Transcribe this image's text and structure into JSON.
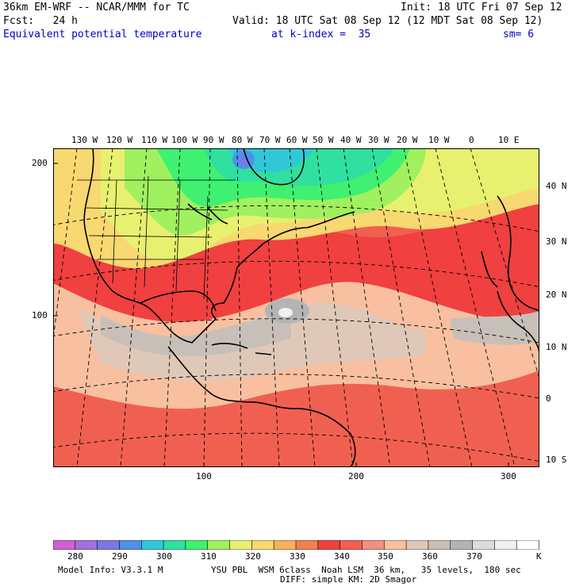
{
  "header": {
    "model_line": "36km EM-WRF -- NCAR/MMM for TC",
    "init_line": "Init: 18 UTC Fri 07 Sep 12",
    "fcst_line": "Fcst:   24 h",
    "valid_line": "Valid: 18 UTC Sat 08 Sep 12 (12 MDT Sat 08 Sep 12)",
    "field": "Equivalent potential temperature",
    "level": "at k-index =  35",
    "smoothing": "sm= 6"
  },
  "map": {
    "top_lon_labels": [
      "130 W",
      "120 W",
      "110 W",
      "100 W",
      "90 W",
      "80 W",
      "70 W",
      "60 W",
      "50 W",
      "40 W",
      "30 W",
      "20 W",
      "10 W",
      "0",
      "10 E"
    ],
    "right_lat_labels": [
      "40 N",
      "30 N",
      "20 N",
      "10 N",
      "0",
      "10 S"
    ],
    "left_grid_labels": [
      "200",
      "100"
    ],
    "bottom_grid_labels": [
      "100",
      "200",
      "300"
    ]
  },
  "colorbar": {
    "labels": [
      "280",
      "290",
      "300",
      "310",
      "320",
      "330",
      "340",
      "350",
      "360",
      "370"
    ],
    "unit": "K",
    "colors": [
      "#d060d0",
      "#a070e0",
      "#7878e8",
      "#5090e8",
      "#30c8d8",
      "#30e0a0",
      "#40f070",
      "#a0f060",
      "#e8f070",
      "#f8d870",
      "#f8b060",
      "#f08050",
      "#f04040",
      "#f06050",
      "#f09080",
      "#f8c0a0",
      "#e0c8b8",
      "#c8c0b8",
      "#b4b4b4",
      "#dcdcdc",
      "#f0f0f0",
      "#ffffff"
    ]
  },
  "footer": {
    "model_info": "Model Info: V3.3.1 M",
    "physics": "YSU PBL  WSM 6class  Noah LSM  36 km,   35 levels,  180 sec",
    "diffusion": "DIFF: simple KM: 2D Smagor"
  }
}
